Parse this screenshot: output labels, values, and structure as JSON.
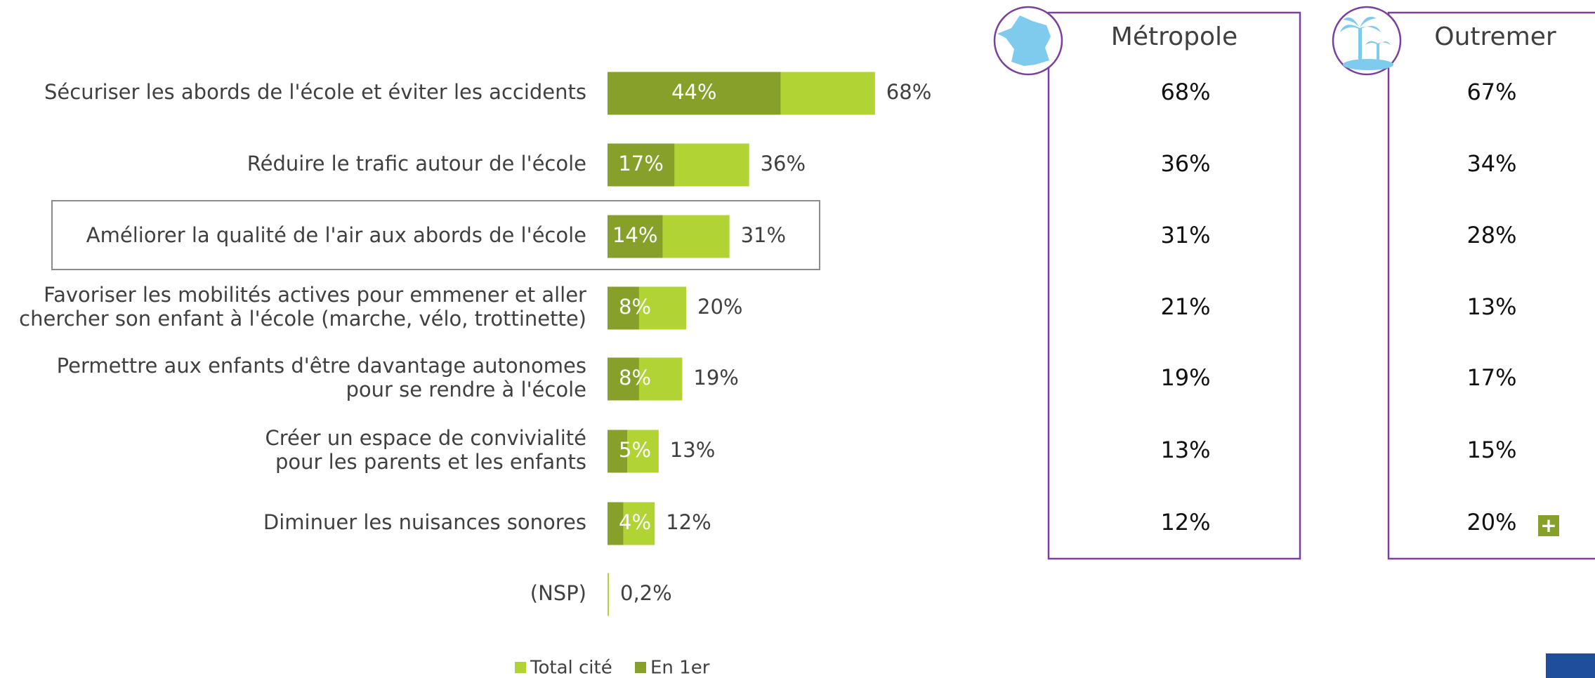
{
  "chart_data": {
    "type": "bar",
    "categories": [
      "Sécuriser les abords de l'école et éviter les accidents",
      "Réduire le trafic autour de l'école",
      "Améliorer la qualité de l'air aux abords de l'école",
      "Favoriser les mobilités actives pour emmener et aller\nchercher son enfant à l'école (marche, vélo, trottinette)",
      "Permettre aux enfants d'être davantage autonomes\npour se rendre à l'école",
      "Créer un espace de convivialité\npour les parents et les enfants",
      "Diminuer les nuisances sonores",
      "(NSP)"
    ],
    "series": [
      {
        "name": "Total cité",
        "color": "#b1d334",
        "values": [
          68,
          36,
          31,
          20,
          19,
          13,
          12,
          0.2
        ],
        "value_labels": [
          "68%",
          "36%",
          "31%",
          "20%",
          "19%",
          "13%",
          "12%",
          "0,2%"
        ]
      },
      {
        "name": "En 1er",
        "color": "#86a02a",
        "values": [
          44,
          17,
          14,
          8,
          8,
          5,
          4,
          null
        ],
        "value_labels": [
          "44%",
          "17%",
          "14%",
          "8%",
          "8%",
          "5%",
          "4%",
          null
        ]
      }
    ],
    "xlim": [
      0,
      100
    ],
    "panels": [
      {
        "title": "Métropole",
        "values": [
          "68%",
          "36%",
          "31%",
          "21%",
          "19%",
          "13%",
          "12%"
        ]
      },
      {
        "title": "Outremer",
        "values": [
          "67%",
          "34%",
          "28%",
          "13%",
          "17%",
          "15%",
          "20%"
        ],
        "marker": "+"
      }
    ]
  }
}
